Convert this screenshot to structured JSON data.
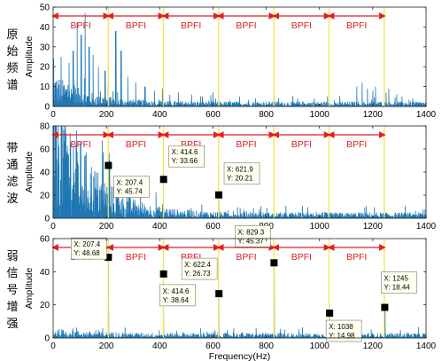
{
  "colors": {
    "spectrum": "#1f77b4",
    "bpfi_line": "#f2e64a",
    "arrow": "#e02020",
    "bpfi_text": "#e02020",
    "datatip_bg": "#fffff0",
    "marker": "#000000"
  },
  "chart_data": [
    {
      "type": "line",
      "side_label": [
        "原",
        "始",
        "频",
        "谱"
      ],
      "ylabel": "Amplitude",
      "xlabel": "",
      "xlim": [
        0,
        1400
      ],
      "ylim": [
        0,
        50
      ],
      "xticks": [
        0,
        200,
        400,
        600,
        800,
        1000,
        1200,
        1400
      ],
      "yticks": [
        0,
        10,
        20,
        30,
        40,
        50
      ],
      "bpfi_lines": [
        207,
        414,
        621,
        829,
        1036,
        1243
      ],
      "bpfi_label": "BPFI",
      "spectrum": {
        "noise": 2.5,
        "peaks": [
          [
            30,
            25
          ],
          [
            60,
            22
          ],
          [
            75,
            28
          ],
          [
            90,
            42
          ],
          [
            105,
            36
          ],
          [
            120,
            47
          ],
          [
            135,
            30
          ],
          [
            150,
            26
          ],
          [
            170,
            20
          ],
          [
            195,
            18
          ],
          [
            235,
            38
          ],
          [
            255,
            28
          ],
          [
            280,
            15
          ],
          [
            310,
            12
          ],
          [
            345,
            10
          ],
          [
            380,
            8
          ],
          [
            410,
            9
          ],
          [
            470,
            7
          ],
          [
            520,
            6
          ],
          [
            560,
            5
          ],
          [
            600,
            7
          ],
          [
            620,
            6
          ],
          [
            700,
            5
          ],
          [
            760,
            4
          ],
          [
            830,
            6
          ],
          [
            900,
            4
          ],
          [
            980,
            4
          ],
          [
            1030,
            5
          ],
          [
            1140,
            10
          ],
          [
            1160,
            12
          ],
          [
            1180,
            9
          ],
          [
            1200,
            8
          ],
          [
            1210,
            10
          ],
          [
            1250,
            7
          ],
          [
            1260,
            9
          ],
          [
            1290,
            6
          ],
          [
            1310,
            5
          ],
          [
            1350,
            4
          ]
        ],
        "decay": 6
      },
      "datatips": []
    },
    {
      "type": "line",
      "side_label": [
        "带",
        "通",
        "滤",
        "波"
      ],
      "ylabel": "Amplitude",
      "xlabel": "",
      "xlim": [
        0,
        1400
      ],
      "ylim": [
        0,
        80
      ],
      "xticks": [
        0,
        200,
        400,
        600,
        800,
        1000,
        1200,
        1400
      ],
      "yticks": [
        0,
        20,
        40,
        60,
        80
      ],
      "bpfi_lines": [
        207,
        414,
        621,
        829,
        1036,
        1243
      ],
      "bpfi_label": "BPFI",
      "spectrum": {
        "noise": 5,
        "peaks": [
          [
            207.4,
            45.74
          ],
          [
            414.6,
            33.66
          ],
          [
            621.9,
            20.21
          ],
          [
            20,
            30
          ],
          [
            40,
            25
          ],
          [
            60,
            22
          ],
          [
            100,
            18
          ],
          [
            150,
            15
          ]
        ],
        "decay": 30
      },
      "datatips": [
        {
          "x": 207.4,
          "y": 45.74,
          "text_x": "X: 207.4",
          "text_y": "Y: 45.74"
        },
        {
          "x": 414.6,
          "y": 33.66,
          "text_x": "X: 414.6",
          "text_y": "Y: 33.66"
        },
        {
          "x": 621.9,
          "y": 20.21,
          "text_x": "X: 621.9",
          "text_y": "Y: 20.21"
        }
      ]
    },
    {
      "type": "line",
      "side_label": [
        "弱",
        "信",
        "号",
        "增",
        "强"
      ],
      "ylabel": "Amplitude",
      "xlabel": "Frequency(Hz)",
      "xlim": [
        0,
        1400
      ],
      "ylim": [
        0,
        60
      ],
      "xticks": [
        0,
        200,
        400,
        600,
        800,
        1000,
        1200,
        1400
      ],
      "yticks": [
        0,
        20,
        40,
        60
      ],
      "bpfi_lines": [
        207,
        414,
        621,
        829,
        1036,
        1243
      ],
      "bpfi_label": "BPFI",
      "spectrum": {
        "noise": 3,
        "peaks": [
          [
            207.4,
            48.68
          ],
          [
            414.6,
            38.64
          ],
          [
            622.4,
            26.73
          ],
          [
            829.3,
            45.37
          ],
          [
            1038,
            14.98
          ],
          [
            1245,
            18.44
          ]
        ],
        "decay": 1
      },
      "datatips": [
        {
          "x": 207.4,
          "y": 48.68,
          "text_x": "X: 207.4",
          "text_y": "Y: 48.68"
        },
        {
          "x": 414.6,
          "y": 38.64,
          "text_x": "X: 414.6",
          "text_y": "Y: 38.64"
        },
        {
          "x": 622.4,
          "y": 26.73,
          "text_x": "X: 622.4",
          "text_y": "Y: 26.73"
        },
        {
          "x": 829.3,
          "y": 45.37,
          "text_x": "X: 829.3",
          "text_y": "Y: 45.37"
        },
        {
          "x": 1038,
          "y": 14.98,
          "text_x": "X: 1038",
          "text_y": "Y: 14.98"
        },
        {
          "x": 1245,
          "y": 18.44,
          "text_x": "X: 1245",
          "text_y": "Y: 18.44"
        }
      ]
    }
  ]
}
